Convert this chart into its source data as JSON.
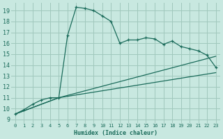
{
  "xlabel": "Humidex (Indice chaleur)",
  "xlim": [
    -0.5,
    23.5
  ],
  "ylim": [
    8.7,
    19.7
  ],
  "xticks": [
    0,
    1,
    2,
    3,
    4,
    5,
    6,
    7,
    8,
    9,
    10,
    11,
    12,
    13,
    14,
    15,
    16,
    17,
    18,
    19,
    20,
    21,
    22,
    23
  ],
  "yticks": [
    9,
    10,
    11,
    12,
    13,
    14,
    15,
    16,
    17,
    18,
    19
  ],
  "bg_color": "#c8e8e0",
  "grid_color": "#a0c8bc",
  "line_color": "#1a6b5a",
  "line1_x": [
    0,
    1,
    2,
    3,
    4,
    5,
    6,
    7,
    8,
    9,
    10,
    11,
    12,
    13,
    14,
    15,
    16,
    17,
    18,
    19,
    20,
    21,
    22,
    23
  ],
  "line1_y": [
    9.5,
    9.9,
    10.4,
    10.8,
    11.0,
    11.0,
    16.7,
    19.3,
    19.2,
    19.0,
    18.5,
    18.0,
    16.0,
    16.3,
    16.3,
    16.5,
    16.4,
    15.9,
    16.2,
    15.7,
    15.5,
    15.3,
    14.9,
    13.8
  ],
  "line2_x": [
    0,
    5,
    23
  ],
  "line2_y": [
    9.5,
    11.0,
    14.8
  ],
  "line3_x": [
    0,
    5,
    23
  ],
  "line3_y": [
    9.5,
    11.0,
    13.3
  ]
}
